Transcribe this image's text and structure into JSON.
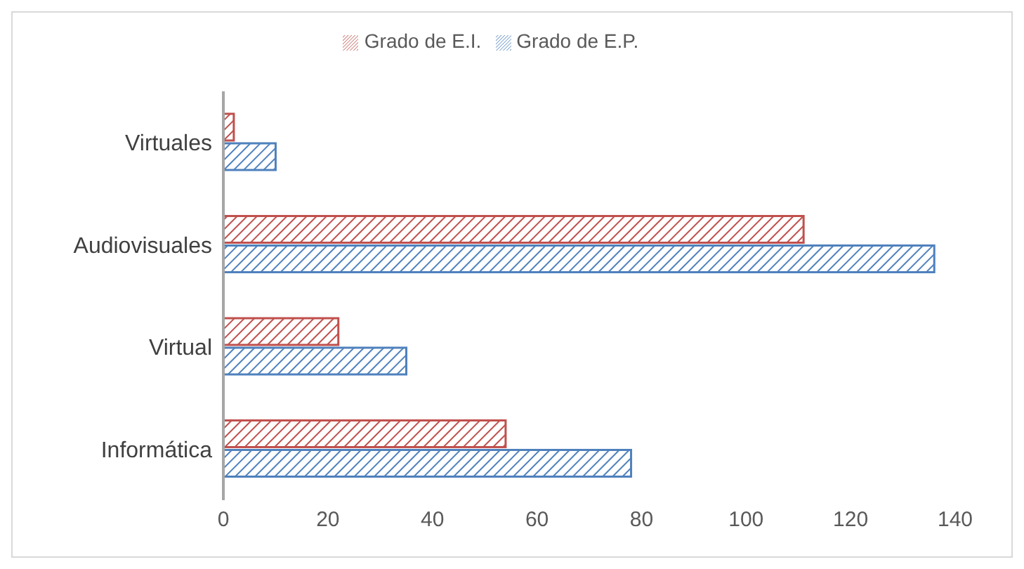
{
  "chart_data": {
    "type": "bar",
    "orientation": "horizontal",
    "categories": [
      "Virtuales",
      "Audiovisuales",
      "Virtual",
      "Informática"
    ],
    "series": [
      {
        "name": "Grado de E.I.",
        "color": "#c0504d",
        "values": [
          2,
          111,
          22,
          54
        ]
      },
      {
        "name": "Grado de E.P.",
        "color": "#4f81bd",
        "values": [
          10,
          136,
          35,
          78
        ]
      }
    ],
    "xlim": [
      0,
      140
    ],
    "xticks": [
      0,
      20,
      40,
      60,
      80,
      100,
      120,
      140
    ],
    "legend": "top"
  }
}
